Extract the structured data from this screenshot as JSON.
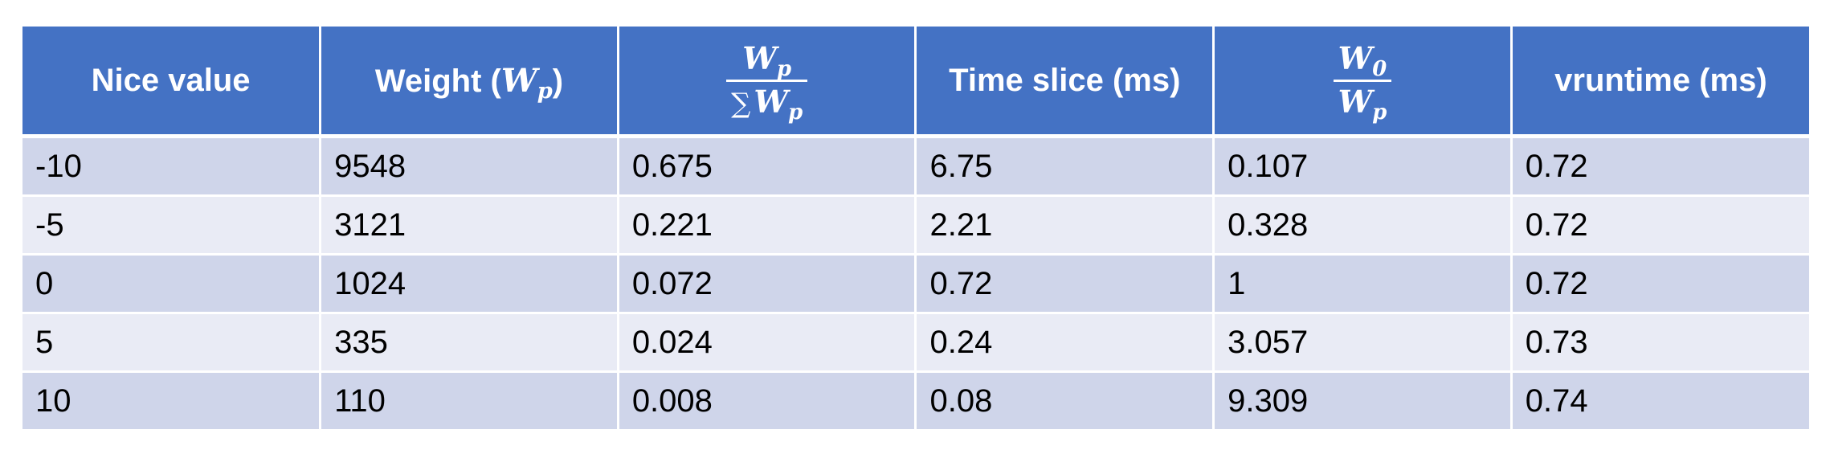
{
  "table": {
    "headers": {
      "nice_value": "Nice value",
      "weight_label": "Weight",
      "weight_symbol": "W",
      "weight_sub": "p",
      "ratio_num_symbol": "W",
      "ratio_num_sub": "p",
      "ratio_den_sigma": "∑",
      "ratio_den_symbol": "W",
      "ratio_den_sub": "p",
      "time_slice": "Time slice (ms)",
      "inv_num_symbol": "W",
      "inv_num_sub": "0",
      "inv_den_symbol": "W",
      "inv_den_sub": "p",
      "vruntime": "vruntime (ms)"
    },
    "rows": [
      [
        "-10",
        "9548",
        "0.675",
        "6.75",
        "0.107",
        "0.72"
      ],
      [
        "-5",
        "3121",
        "0.221",
        "2.21",
        "0.328",
        "0.72"
      ],
      [
        "0",
        "1024",
        "0.072",
        "0.72",
        "1",
        "0.72"
      ],
      [
        "5",
        "335",
        "0.024",
        "0.24",
        "3.057",
        "0.73"
      ],
      [
        "10",
        "110",
        "0.008",
        "0.08",
        "9.309",
        "0.74"
      ]
    ]
  }
}
